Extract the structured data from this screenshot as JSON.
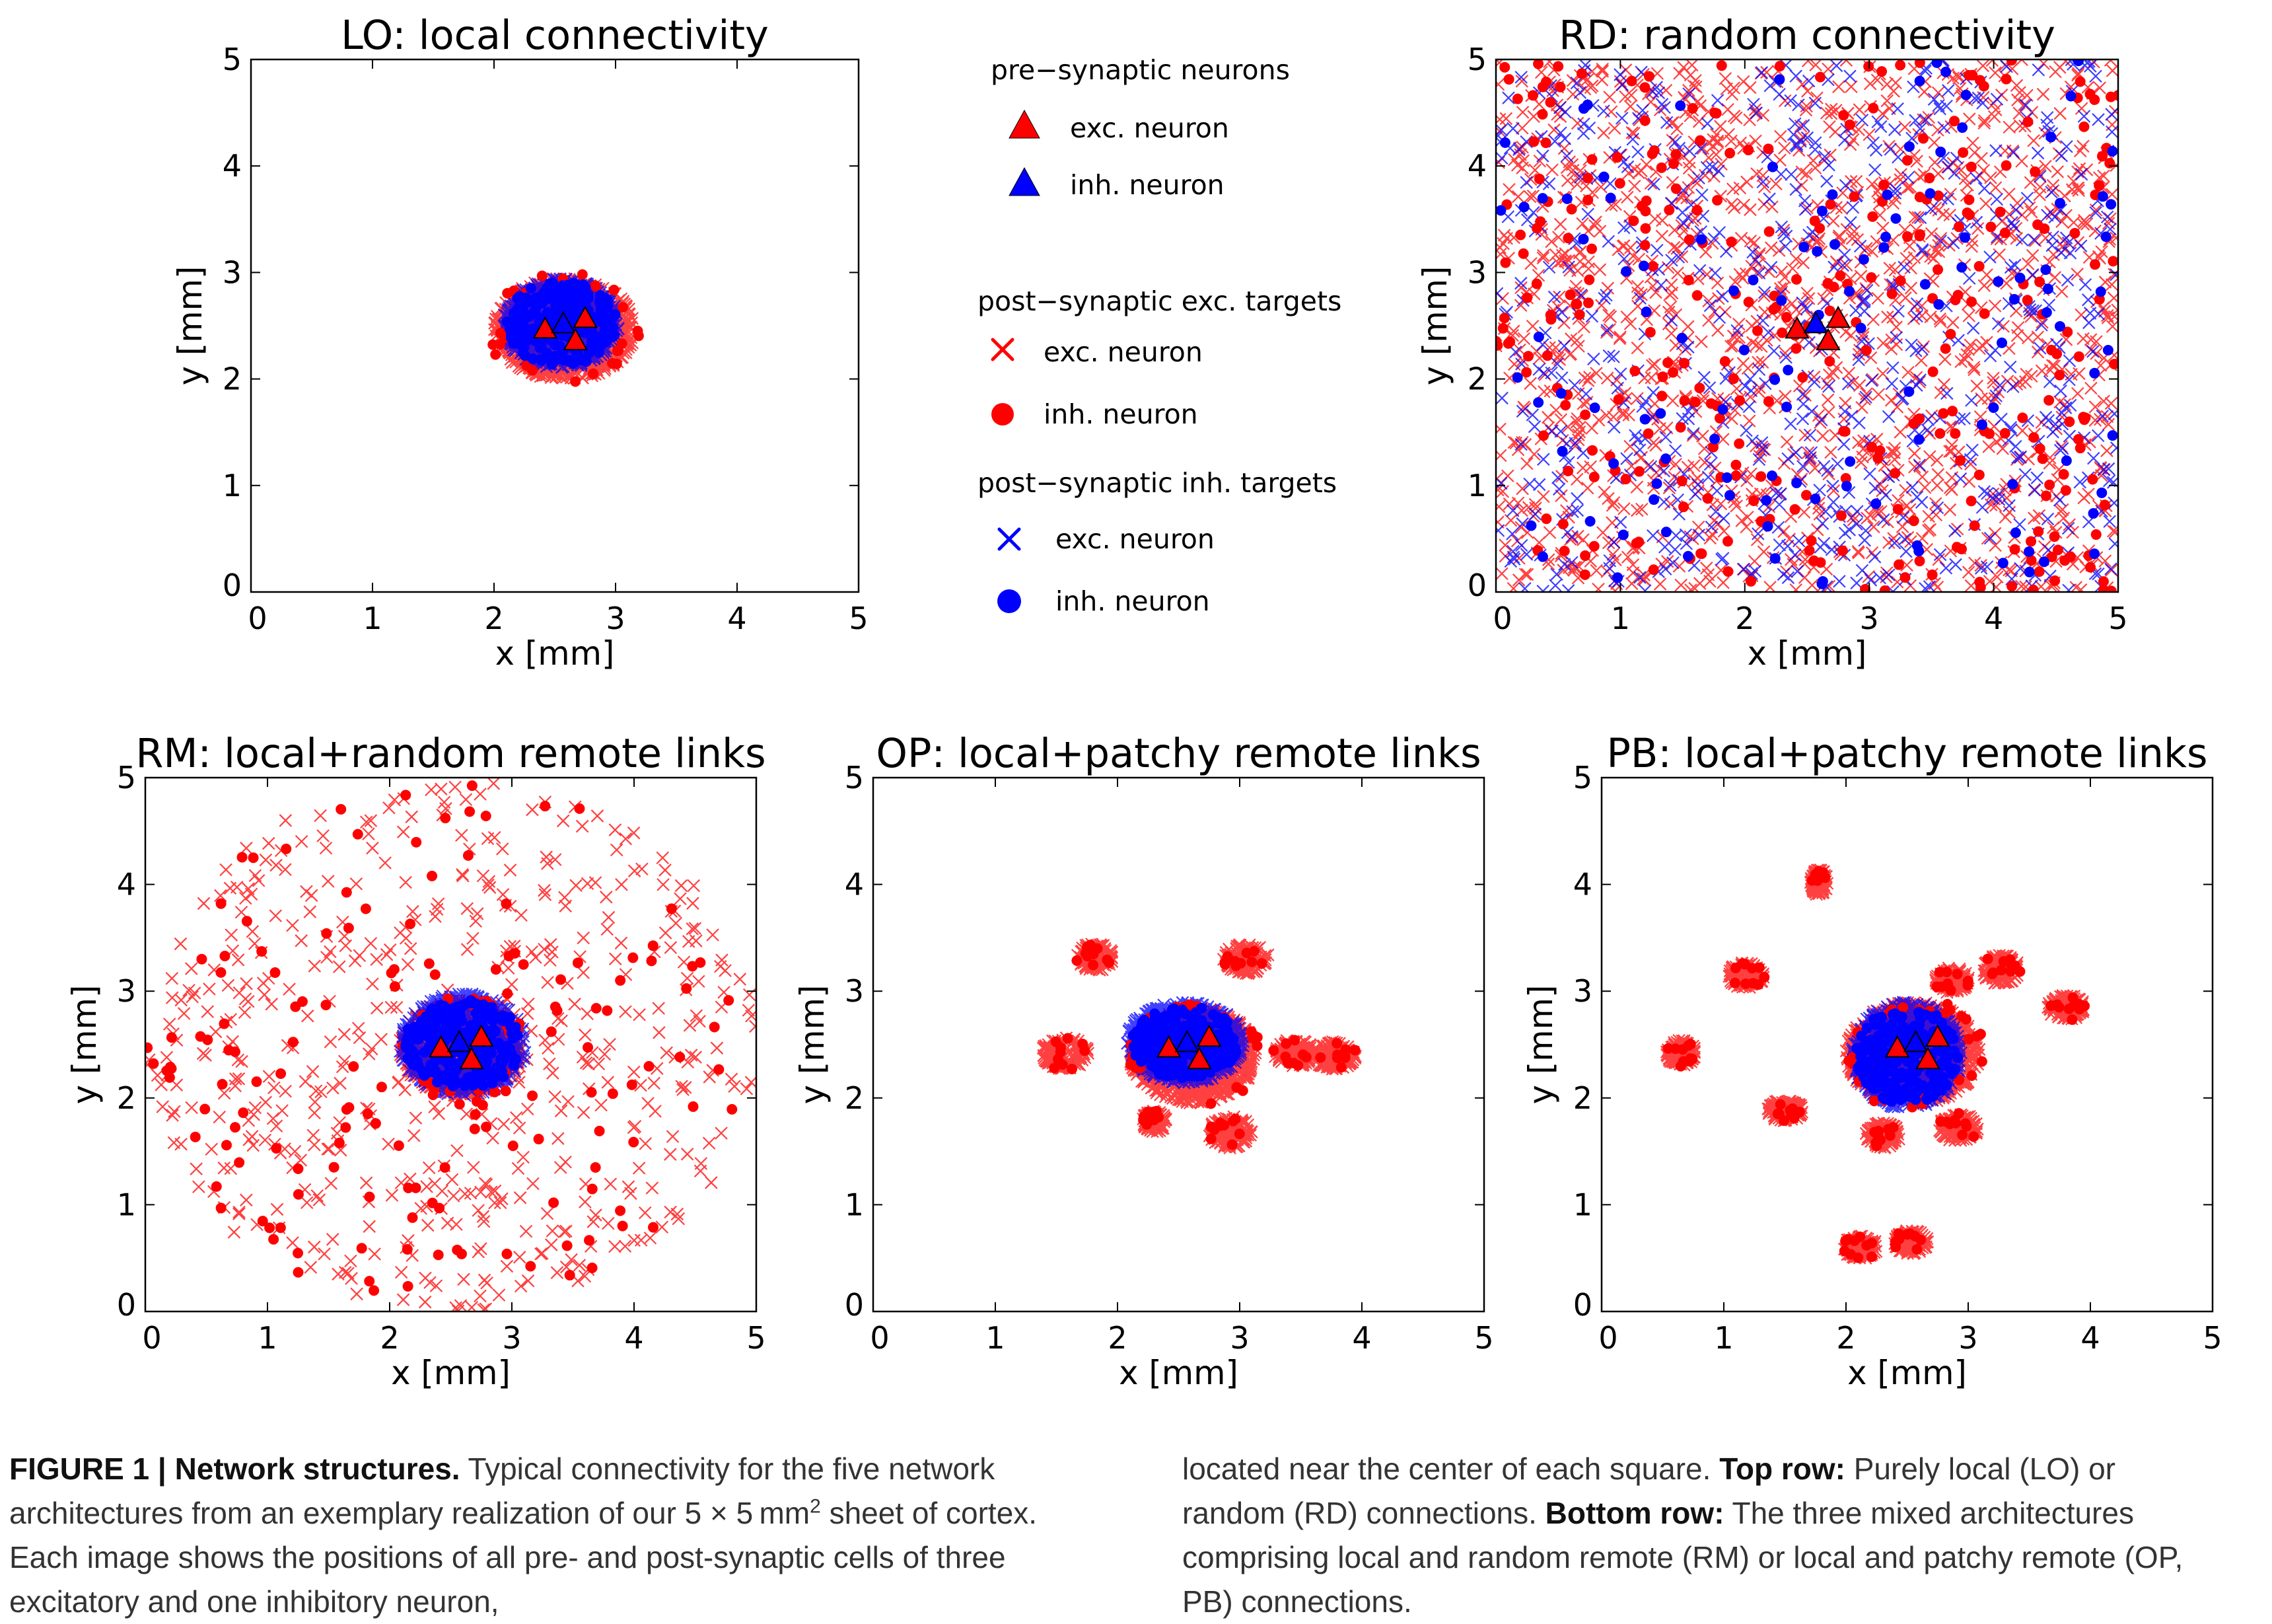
{
  "chart_data": [
    {
      "id": "LO",
      "type": "scatter",
      "title": "LO: local connectivity",
      "xlabel": "x [mm]",
      "ylabel": "y [mm]",
      "xlim": [
        0,
        5
      ],
      "ylim": [
        0,
        5
      ],
      "xticks": [
        "0",
        "1",
        "2",
        "3",
        "4",
        "5"
      ],
      "yticks": [
        "0",
        "1",
        "2",
        "3",
        "4",
        "5"
      ],
      "grid": false,
      "pre_synaptic": [
        {
          "kind": "exc",
          "x": 2.42,
          "y": 2.47
        },
        {
          "kind": "inh",
          "x": 2.57,
          "y": 2.52
        },
        {
          "kind": "exc",
          "x": 2.67,
          "y": 2.36
        },
        {
          "kind": "exc",
          "x": 2.75,
          "y": 2.57
        }
      ],
      "target_clusters": [
        {
          "cx": 2.58,
          "cy": 2.47,
          "rx": 0.58,
          "ry": 0.48,
          "target": "exc",
          "pre": "exc"
        },
        {
          "cx": 2.55,
          "cy": 2.52,
          "rx": 0.48,
          "ry": 0.42,
          "target": "exc",
          "pre": "inh"
        },
        {
          "cx": 2.55,
          "cy": 2.52,
          "rx": 0.46,
          "ry": 0.4,
          "target": "inh",
          "pre": "inh"
        }
      ]
    },
    {
      "id": "RD",
      "type": "scatter",
      "title": "RD: random connectivity",
      "xlabel": "x [mm]",
      "ylabel": "y [mm]",
      "xlim": [
        0,
        5
      ],
      "ylim": [
        0,
        5
      ],
      "xticks": [
        "0",
        "1",
        "2",
        "3",
        "4",
        "5"
      ],
      "yticks": [
        "0",
        "1",
        "2",
        "3",
        "4",
        "5"
      ],
      "grid": false,
      "pre_synaptic": [
        {
          "kind": "exc",
          "x": 2.42,
          "y": 2.47
        },
        {
          "kind": "inh",
          "x": 2.57,
          "y": 2.52
        },
        {
          "kind": "exc",
          "x": 2.67,
          "y": 2.36
        },
        {
          "kind": "exc",
          "x": 2.75,
          "y": 2.57
        }
      ],
      "uniform_targets": true
    },
    {
      "id": "RM",
      "type": "scatter",
      "title": "RM: local+random remote links",
      "xlabel": "x [mm]",
      "ylabel": "y [mm]",
      "xlim": [
        0,
        5
      ],
      "ylim": [
        0,
        5
      ],
      "xticks": [
        "0",
        "1",
        "2",
        "3",
        "4",
        "5"
      ],
      "yticks": [
        "0",
        "1",
        "2",
        "3",
        "4",
        "5"
      ],
      "grid": false,
      "pre_synaptic": [
        {
          "kind": "exc",
          "x": 2.42,
          "y": 2.47
        },
        {
          "kind": "inh",
          "x": 2.57,
          "y": 2.52
        },
        {
          "kind": "exc",
          "x": 2.67,
          "y": 2.36
        },
        {
          "kind": "exc",
          "x": 2.75,
          "y": 2.57
        }
      ],
      "target_clusters": [
        {
          "cx": 2.58,
          "cy": 2.47,
          "rx": 0.5,
          "ry": 0.45,
          "target": "exc",
          "pre": "exc"
        },
        {
          "cx": 2.6,
          "cy": 2.5,
          "rx": 0.52,
          "ry": 0.48,
          "target": "exc",
          "pre": "inh"
        },
        {
          "cx": 2.6,
          "cy": 2.5,
          "rx": 0.48,
          "ry": 0.42,
          "target": "inh",
          "pre": "inh"
        }
      ],
      "remote_disk": {
        "cx": 2.5,
        "cy": 2.5,
        "r": 2.5
      }
    },
    {
      "id": "OP",
      "type": "scatter",
      "title": "OP: local+patchy remote links",
      "xlabel": "x [mm]",
      "ylabel": "y [mm]",
      "xlim": [
        0,
        5
      ],
      "ylim": [
        0,
        5
      ],
      "xticks": [
        "0",
        "1",
        "2",
        "3",
        "4",
        "5"
      ],
      "yticks": [
        "0",
        "1",
        "2",
        "3",
        "4",
        "5"
      ],
      "grid": false,
      "pre_synaptic": [
        {
          "kind": "exc",
          "x": 2.42,
          "y": 2.47
        },
        {
          "kind": "inh",
          "x": 2.57,
          "y": 2.52
        },
        {
          "kind": "exc",
          "x": 2.67,
          "y": 2.36
        },
        {
          "kind": "exc",
          "x": 2.75,
          "y": 2.57
        }
      ],
      "target_clusters": [
        {
          "cx": 2.62,
          "cy": 2.4,
          "rx": 0.52,
          "ry": 0.45,
          "target": "exc",
          "pre": "exc"
        },
        {
          "cx": 2.55,
          "cy": 2.52,
          "rx": 0.48,
          "ry": 0.38,
          "target": "exc",
          "pre": "inh"
        },
        {
          "cx": 2.55,
          "cy": 2.52,
          "rx": 0.44,
          "ry": 0.34,
          "target": "inh",
          "pre": "inh"
        }
      ],
      "patches": [
        {
          "cx": 1.82,
          "cy": 3.32,
          "rx": 0.15,
          "ry": 0.13
        },
        {
          "cx": 1.57,
          "cy": 2.42,
          "rx": 0.19,
          "ry": 0.15
        },
        {
          "cx": 3.05,
          "cy": 3.3,
          "rx": 0.19,
          "ry": 0.14
        },
        {
          "cx": 3.45,
          "cy": 2.42,
          "rx": 0.17,
          "ry": 0.13
        },
        {
          "cx": 3.77,
          "cy": 2.4,
          "rx": 0.18,
          "ry": 0.13
        },
        {
          "cx": 2.92,
          "cy": 1.68,
          "rx": 0.18,
          "ry": 0.15
        },
        {
          "cx": 2.3,
          "cy": 1.78,
          "rx": 0.1,
          "ry": 0.1
        }
      ]
    },
    {
      "id": "PB",
      "type": "scatter",
      "title": "PB: local+patchy remote links",
      "xlabel": "x [mm]",
      "ylabel": "y [mm]",
      "xlim": [
        0,
        5
      ],
      "ylim": [
        0,
        5
      ],
      "xticks": [
        "0",
        "1",
        "2",
        "3",
        "4",
        "5"
      ],
      "yticks": [
        "0",
        "1",
        "2",
        "3",
        "4",
        "5"
      ],
      "grid": false,
      "pre_synaptic": [
        {
          "kind": "exc",
          "x": 2.42,
          "y": 2.47
        },
        {
          "kind": "inh",
          "x": 2.57,
          "y": 2.52
        },
        {
          "kind": "exc",
          "x": 2.67,
          "y": 2.36
        },
        {
          "kind": "exc",
          "x": 2.75,
          "y": 2.57
        }
      ],
      "target_clusters": [
        {
          "cx": 2.55,
          "cy": 2.42,
          "rx": 0.55,
          "ry": 0.48,
          "target": "exc",
          "pre": "exc"
        },
        {
          "cx": 2.5,
          "cy": 2.4,
          "rx": 0.45,
          "ry": 0.5,
          "target": "exc",
          "pre": "inh"
        },
        {
          "cx": 2.5,
          "cy": 2.4,
          "rx": 0.42,
          "ry": 0.46,
          "target": "inh",
          "pre": "inh"
        }
      ],
      "patches": [
        {
          "cx": 0.65,
          "cy": 2.42,
          "rx": 0.12,
          "ry": 0.12
        },
        {
          "cx": 1.18,
          "cy": 3.15,
          "rx": 0.15,
          "ry": 0.12
        },
        {
          "cx": 2.87,
          "cy": 3.1,
          "rx": 0.14,
          "ry": 0.12
        },
        {
          "cx": 3.27,
          "cy": 3.2,
          "rx": 0.15,
          "ry": 0.14
        },
        {
          "cx": 3.8,
          "cy": 2.85,
          "rx": 0.15,
          "ry": 0.12
        },
        {
          "cx": 2.3,
          "cy": 1.65,
          "rx": 0.14,
          "ry": 0.12
        },
        {
          "cx": 2.92,
          "cy": 1.72,
          "rx": 0.16,
          "ry": 0.13
        },
        {
          "cx": 2.12,
          "cy": 0.6,
          "rx": 0.14,
          "ry": 0.11
        },
        {
          "cx": 2.53,
          "cy": 0.65,
          "rx": 0.14,
          "ry": 0.11
        },
        {
          "cx": 1.5,
          "cy": 1.88,
          "rx": 0.15,
          "ry": 0.1
        },
        {
          "cx": 1.78,
          "cy": 4.02,
          "rx": 0.07,
          "ry": 0.12
        }
      ]
    }
  ],
  "legend": {
    "pre_title": "pre−synaptic neurons",
    "pre_exc": "exc. neuron",
    "pre_inh": "inh. neuron",
    "exc_targets_title": "post−synaptic exc. targets",
    "exc_target_exc": "exc. neuron",
    "exc_target_inh": "inh. neuron",
    "inh_targets_title": "post−synaptic inh. targets",
    "inh_target_exc": "exc. neuron",
    "inh_target_inh": "inh. neuron"
  },
  "colors": {
    "excitatory": "#ff0000",
    "inhibitory": "#0000ff",
    "marker_edge": "#000000"
  },
  "caption": {
    "label": "FIGURE 1 | Network structures.",
    "body_1": " Typical connectivity for the five network architectures from an exemplary realization of our 5 × 5 mm",
    "superscript": "2",
    "body_2": " sheet of cortex. Each image shows the positions of all pre- and post-synaptic cells of three excitatory and one inhibitory neuron, located near the center of each square. ",
    "top_label": "Top row:",
    "top_text": " Purely local (LO) or random (RD) connections. ",
    "bottom_label": "Bottom row:",
    "bottom_text": " The three mixed architectures comprising local and random remote (RM) or local and patchy remote (OP, PB) connections."
  }
}
